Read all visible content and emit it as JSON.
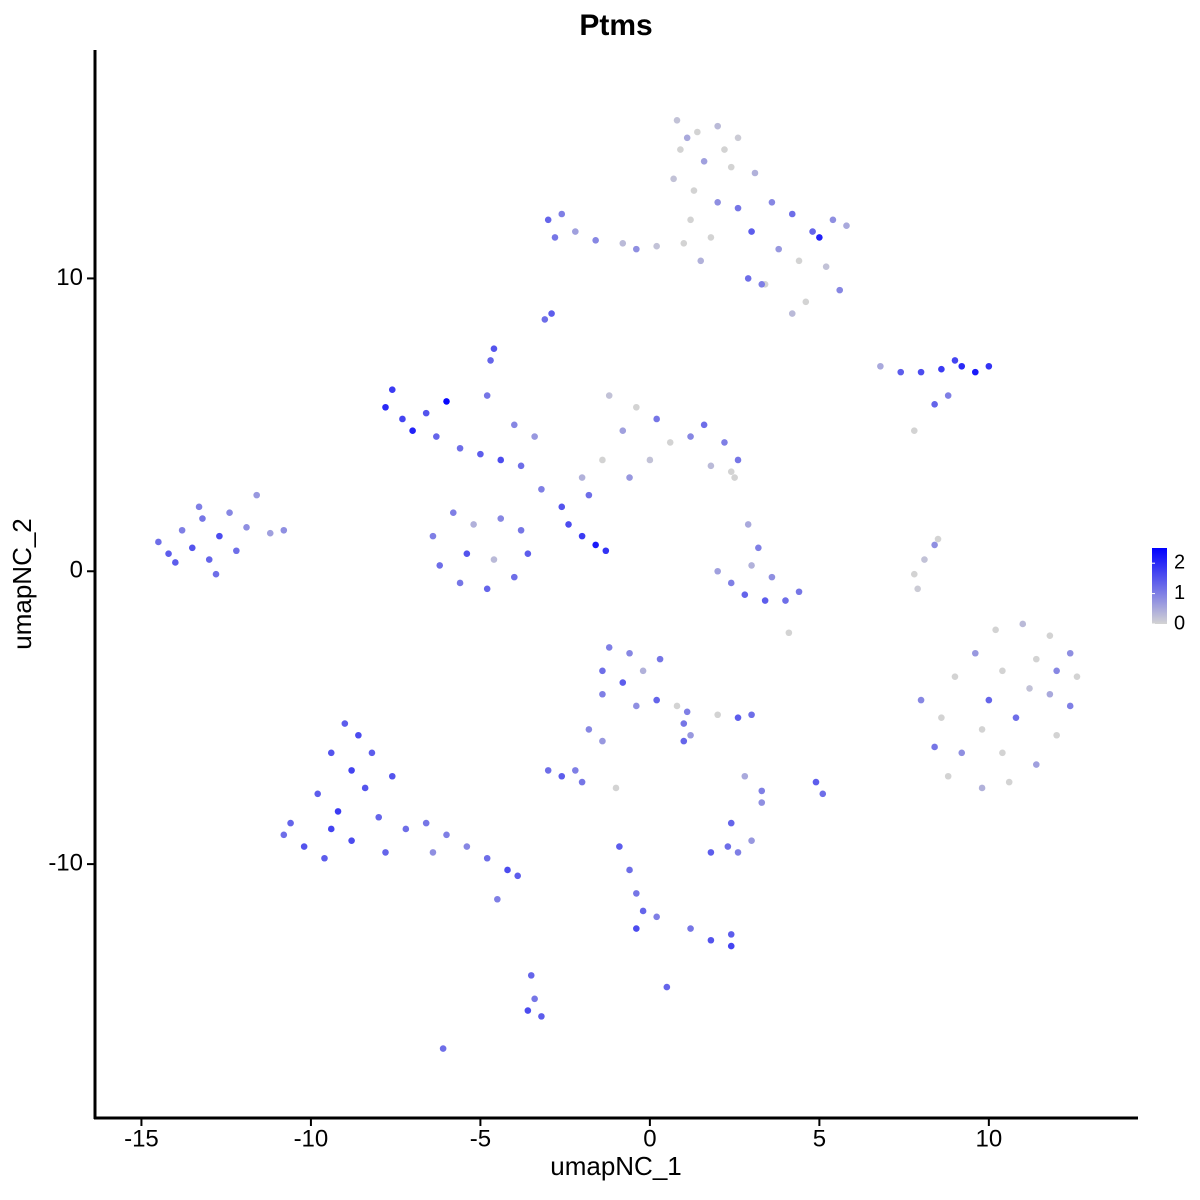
{
  "chart_data": {
    "type": "scatter",
    "title": "Ptms",
    "x_label": "umapNC_1",
    "y_label": "umapNC_2",
    "xlim": [
      -16.37,
      14.4
    ],
    "ylim": [
      -18.67,
      17.8
    ],
    "xticks": [
      -15,
      -10,
      -5,
      0,
      5,
      10
    ],
    "yticks": [
      -10,
      0,
      10
    ],
    "colorbar": {
      "lim": [
        0,
        2.5
      ],
      "ticks": [
        0,
        1,
        2
      ],
      "colors": [
        "#d3d3d3",
        "#0000ff"
      ]
    },
    "x": [
      -14.5,
      -14.2,
      -13.8,
      -13.5,
      -13.2,
      -13.0,
      -12.7,
      -12.4,
      -12.2,
      -11.9,
      -11.6,
      -11.2,
      -14.0,
      -13.3,
      -12.8,
      -10.8,
      -9.0,
      -8.6,
      -9.4,
      -8.8,
      -9.8,
      -8.4,
      -9.2,
      -10.6,
      -10.2,
      -9.6,
      -8.8,
      -8.0,
      -7.6,
      -7.2,
      -6.6,
      -6.0,
      -5.4,
      -4.8,
      -4.2,
      -3.9,
      -10.8,
      -8.2,
      -7.8,
      -9.4,
      -6.4,
      -4.5,
      0.8,
      1.4,
      2.0,
      2.6,
      0.9,
      1.6,
      2.4,
      3.1,
      0.7,
      1.3,
      2.0,
      1.2,
      1.0,
      2.6,
      3.0,
      3.6,
      4.2,
      4.8,
      5.4,
      5.8,
      5.0,
      3.8,
      4.4,
      5.2,
      5.6,
      4.6,
      4.2,
      3.4,
      1.8,
      1.5,
      2.2,
      1.1,
      3.3,
      2.9,
      -3.0,
      -2.6,
      -2.8,
      -2.2,
      -1.6,
      -0.8,
      0.2,
      -0.4,
      -2.9,
      -3.1,
      -4.6,
      -4.7,
      -7.6,
      -7.8,
      -7.3,
      -7.0,
      -6.6,
      -6.0,
      -6.3,
      -5.6,
      -5.0,
      -4.4,
      -3.8,
      -3.2,
      -4.0,
      -4.8,
      -3.4,
      -6.4,
      -6.2,
      -5.6,
      -4.8,
      -4.0,
      -3.6,
      -3.8,
      -4.4,
      -5.2,
      -5.8,
      -4.6,
      -5.4,
      -2.0,
      -1.4,
      -0.8,
      -0.4,
      -1.2,
      0.2,
      0.6,
      1.2,
      1.6,
      2.2,
      2.6,
      2.4,
      1.8,
      0.0,
      -0.6,
      -1.8,
      -2.6,
      2.5,
      -2.4,
      -2.0,
      -1.6,
      -1.3,
      6.8,
      7.4,
      8.0,
      8.6,
      9.2,
      9.6,
      10.0,
      9.0,
      8.8,
      8.4,
      7.8,
      2.0,
      2.4,
      2.8,
      3.4,
      4.0,
      4.4,
      3.6,
      3.2,
      3.0,
      2.9,
      4.1,
      7.8,
      8.1,
      8.4,
      8.5,
      7.9,
      10.2,
      11.0,
      11.8,
      12.4,
      12.6,
      12.4,
      12.0,
      11.4,
      10.6,
      9.8,
      8.8,
      8.4,
      8.0,
      9.0,
      9.6,
      10.4,
      11.2,
      10.8,
      9.8,
      9.2,
      10.4,
      11.8,
      10.0,
      11.4,
      8.6,
      12.0,
      -1.2,
      -0.6,
      -1.4,
      -0.8,
      -0.2,
      0.3,
      0.2,
      -0.4,
      0.8,
      1.0,
      1.2,
      1.0,
      -1.4,
      -1.8,
      -3.0,
      -2.6,
      -2.2,
      -2.0,
      -1.4,
      2.6,
      3.0,
      2.0,
      4.9,
      5.1,
      3.3,
      3.3,
      2.8,
      2.3,
      1.8,
      2.6,
      3.0,
      2.4,
      -0.9,
      -0.6,
      -0.4,
      -0.2,
      -0.4,
      0.2,
      1.2,
      1.8,
      2.4,
      2.4,
      0.5,
      -3.5,
      -3.4,
      -3.6,
      -3.2,
      -6.1,
      -1.0,
      1.1
    ],
    "y": [
      1.0,
      0.6,
      1.4,
      0.8,
      1.8,
      0.4,
      1.2,
      2.0,
      0.7,
      1.5,
      2.6,
      1.3,
      0.3,
      2.2,
      -0.1,
      1.4,
      -5.2,
      -5.6,
      -6.2,
      -6.8,
      -7.6,
      -7.4,
      -8.2,
      -8.6,
      -9.4,
      -9.8,
      -9.2,
      -8.4,
      -7.0,
      -8.8,
      -8.6,
      -9.0,
      -9.4,
      -9.8,
      -10.2,
      -10.4,
      -9.0,
      -6.2,
      -9.6,
      -8.8,
      -9.6,
      -11.2,
      15.4,
      15.0,
      15.2,
      14.8,
      14.4,
      14.0,
      13.8,
      13.6,
      13.4,
      13.0,
      12.6,
      12.0,
      11.2,
      12.4,
      11.6,
      12.6,
      12.2,
      11.6,
      12.0,
      11.8,
      11.4,
      11.0,
      10.6,
      10.4,
      9.6,
      9.2,
      8.8,
      9.8,
      11.4,
      10.6,
      14.4,
      14.8,
      9.8,
      10.0,
      12.0,
      12.2,
      11.4,
      11.6,
      11.3,
      11.2,
      11.1,
      11.0,
      8.8,
      8.6,
      7.6,
      7.2,
      6.2,
      5.6,
      5.2,
      4.8,
      5.4,
      5.8,
      4.6,
      4.2,
      4.0,
      3.8,
      3.6,
      2.8,
      5.0,
      6.0,
      4.6,
      1.2,
      0.2,
      -0.4,
      -0.6,
      -0.2,
      0.6,
      1.4,
      1.8,
      1.6,
      2.0,
      0.4,
      0.6,
      3.2,
      3.8,
      4.8,
      5.6,
      6.0,
      5.2,
      4.4,
      4.6,
      5.0,
      4.4,
      3.8,
      3.4,
      3.6,
      3.8,
      3.2,
      2.6,
      2.2,
      3.2,
      1.6,
      1.2,
      0.9,
      0.7,
      7.0,
      6.8,
      6.8,
      6.9,
      7.0,
      6.8,
      7.0,
      7.2,
      6.0,
      5.7,
      4.8,
      0.0,
      -0.4,
      -0.8,
      -1.0,
      -1.0,
      -0.7,
      -0.2,
      0.8,
      0.2,
      1.6,
      -2.1,
      -0.1,
      0.4,
      0.9,
      1.1,
      -0.6,
      -2.0,
      -1.8,
      -2.2,
      -2.8,
      -3.6,
      -4.6,
      -5.6,
      -6.6,
      -7.2,
      -7.4,
      -7.0,
      -6.0,
      -4.4,
      -3.6,
      -2.8,
      -3.4,
      -4.0,
      -5.0,
      -5.4,
      -6.2,
      -6.2,
      -4.2,
      -4.4,
      -3.0,
      -5.0,
      -3.4,
      -2.6,
      -2.8,
      -3.4,
      -3.8,
      -3.4,
      -3.0,
      -4.4,
      -4.6,
      -4.6,
      -5.2,
      -5.6,
      -5.8,
      -4.2,
      -5.4,
      -6.8,
      -7.0,
      -6.8,
      -7.2,
      -5.8,
      -5.0,
      -4.9,
      -4.9,
      -7.2,
      -7.6,
      -7.5,
      -7.9,
      -7.0,
      -9.4,
      -9.6,
      -9.6,
      -9.2,
      -8.6,
      -9.4,
      -10.2,
      -11.0,
      -11.6,
      -12.2,
      -11.8,
      -12.2,
      -12.6,
      -12.8,
      -12.4,
      -14.2,
      -13.8,
      -14.6,
      -15.0,
      -15.2,
      -16.3,
      -7.4,
      -4.8
    ],
    "values": [
      1.2,
      1.4,
      1.0,
      1.5,
      1.1,
      1.3,
      1.6,
      0.9,
      1.2,
      0.8,
      0.7,
      0.6,
      1.4,
      1.0,
      1.2,
      0.8,
      1.4,
      1.6,
      1.5,
      1.7,
      1.4,
      1.5,
      1.8,
      1.3,
      1.5,
      1.4,
      1.6,
      1.3,
      1.5,
      1.2,
      1.1,
      1.0,
      0.9,
      1.2,
      1.6,
      1.4,
      1.2,
      1.4,
      1.3,
      1.7,
      0.8,
      1.0,
      0.2,
      0.0,
      0.3,
      0.1,
      0.0,
      0.6,
      0.0,
      0.4,
      0.2,
      0.0,
      0.8,
      0.0,
      0.0,
      1.1,
      1.4,
      0.9,
      1.2,
      1.3,
      0.8,
      0.5,
      2.1,
      0.7,
      0.0,
      0.2,
      0.9,
      0.0,
      0.3,
      0.0,
      0.0,
      0.4,
      0.0,
      0.5,
      1.0,
      1.2,
      1.3,
      1.0,
      1.1,
      0.6,
      0.9,
      0.3,
      0.2,
      0.8,
      1.4,
      1.2,
      1.5,
      1.3,
      1.8,
      2.0,
      1.7,
      2.1,
      1.5,
      2.4,
      1.3,
      1.2,
      1.4,
      1.6,
      1.2,
      1.0,
      0.9,
      1.1,
      0.7,
      1.0,
      1.2,
      1.1,
      1.3,
      1.2,
      1.4,
      1.1,
      0.9,
      0.4,
      1.0,
      0.3,
      1.5,
      0.4,
      0.0,
      0.6,
      0.0,
      0.2,
      1.1,
      0.0,
      0.9,
      1.2,
      1.0,
      1.1,
      0.0,
      0.3,
      0.2,
      0.7,
      1.2,
      1.5,
      0.0,
      1.6,
      1.8,
      2.2,
      1.9,
      0.5,
      1.4,
      1.6,
      1.8,
      2.0,
      2.2,
      1.9,
      1.7,
      1.0,
      1.3,
      0.0,
      0.6,
      1.0,
      1.3,
      1.4,
      1.2,
      1.1,
      0.8,
      1.0,
      0.4,
      0.5,
      0.0,
      0.0,
      0.2,
      0.8,
      0.0,
      0.1,
      0.0,
      0.3,
      0.0,
      0.8,
      0.0,
      1.0,
      0.0,
      0.6,
      0.0,
      0.4,
      0.0,
      1.1,
      0.9,
      0.0,
      0.7,
      0.0,
      0.2,
      1.2,
      0.0,
      0.8,
      0.0,
      0.5,
      1.3,
      0.0,
      0.0,
      0.9,
      1.0,
      0.9,
      1.2,
      1.4,
      0.4,
      1.1,
      1.3,
      0.8,
      0.0,
      1.1,
      0.7,
      1.3,
      1.0,
      0.9,
      1.2,
      1.4,
      1.0,
      1.1,
      0.7,
      1.4,
      1.2,
      0.0,
      1.4,
      1.2,
      1.0,
      0.8,
      0.5,
      1.2,
      1.4,
      1.0,
      0.7,
      1.3,
      1.4,
      1.2,
      1.1,
      1.3,
      1.6,
      1.0,
      1.1,
      1.5,
      1.7,
      1.4,
      1.3,
      1.3,
      1.1,
      1.6,
      1.4,
      1.2,
      0.0,
      1.0
    ]
  }
}
